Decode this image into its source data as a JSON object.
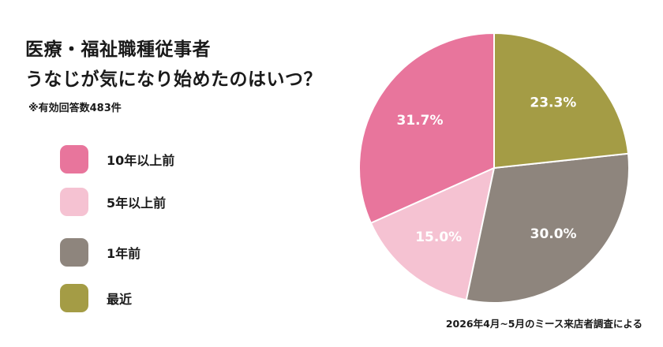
{
  "title": {
    "line1": "医療・福祉職種従事者",
    "line2": "うなじが気になり始めたのはいつ？"
  },
  "note": "※有効回答数483件",
  "source": "2026年4月~5月のミース来店者調査による",
  "chart_data": {
    "type": "pie",
    "categories": [
      "10年以上前",
      "5年以上前",
      "1年前",
      "最近"
    ],
    "values": [
      31.7,
      15.0,
      30.0,
      23.3
    ],
    "labels": [
      "31.7%",
      "15.0%",
      "30.0%",
      "23.3%"
    ],
    "colors": [
      "#e8759c",
      "#f5c2d2",
      "#8e857d",
      "#a49c45"
    ],
    "start": "12 o'clock",
    "direction": "counter-clockwise",
    "legend": "left"
  }
}
